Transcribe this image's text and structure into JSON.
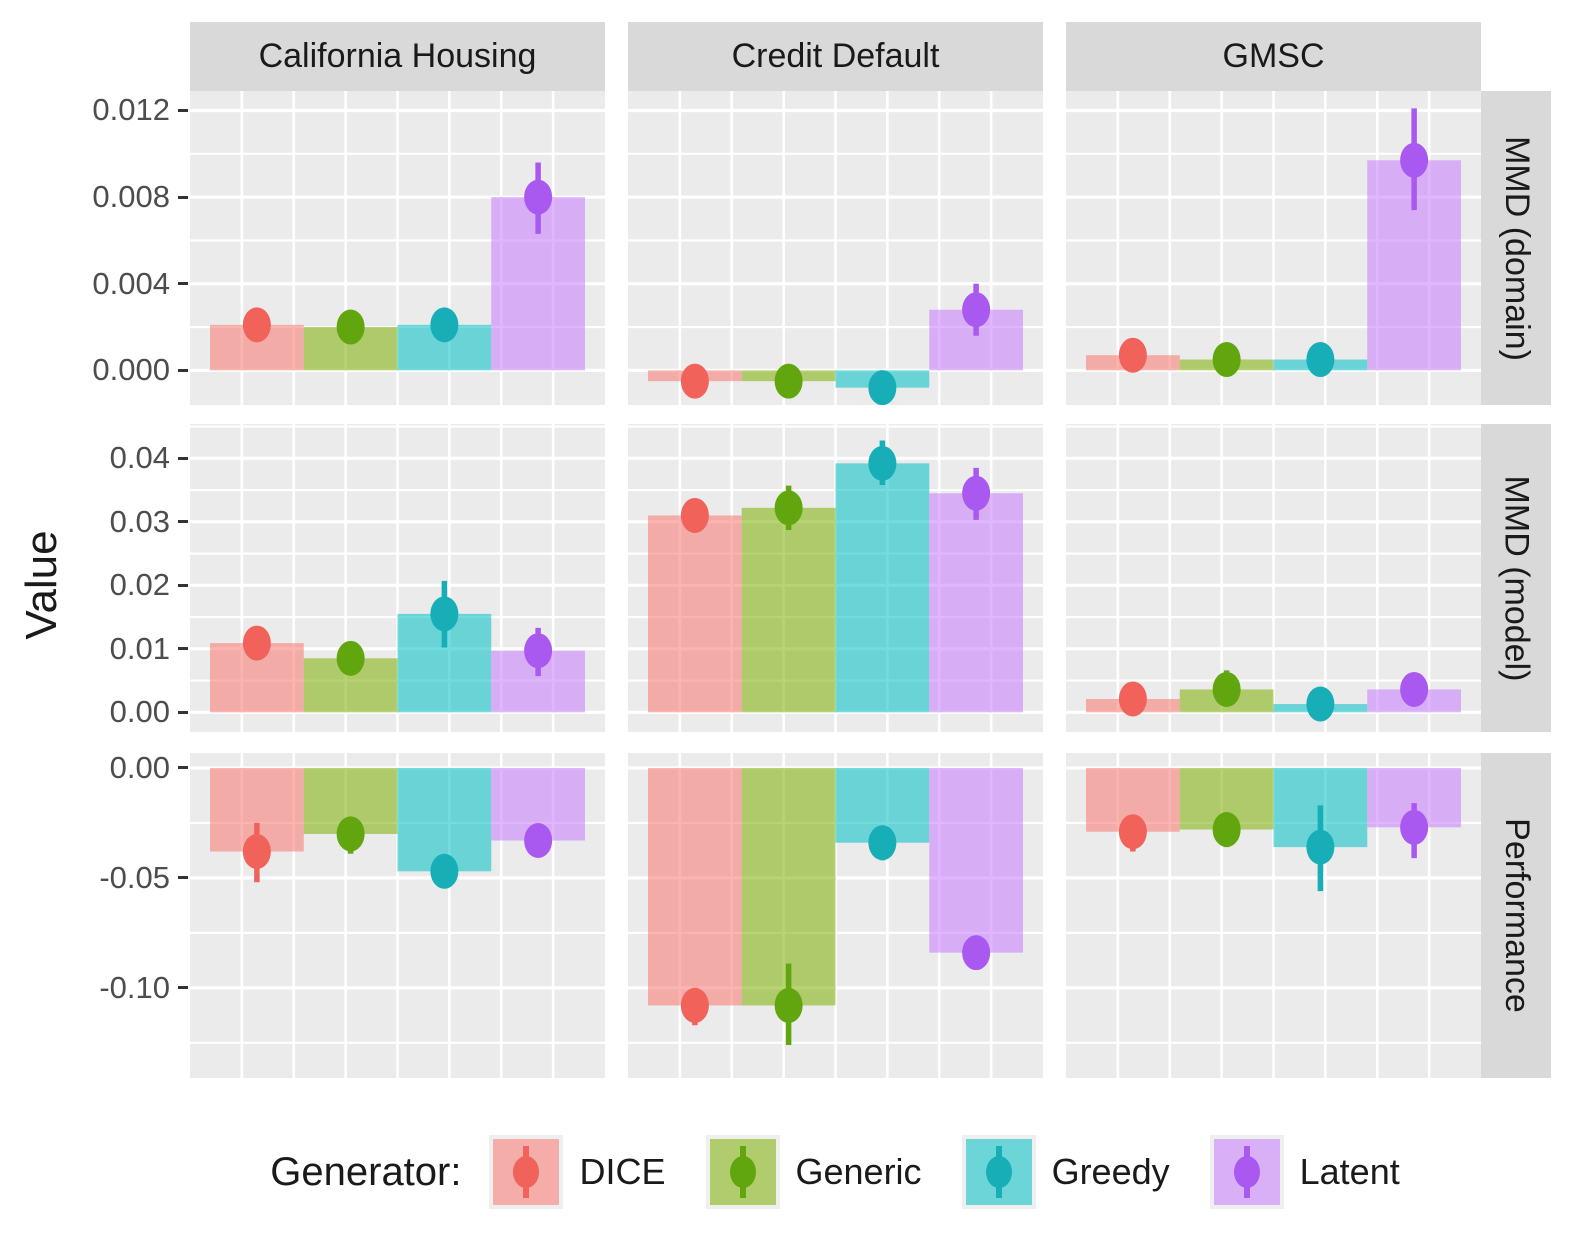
{
  "chart_data": {
    "type": "bar",
    "title": "",
    "ylabel": "Value",
    "legend_title": "Generator:",
    "facet_columns": [
      "California Housing",
      "Credit Default",
      "GMSC"
    ],
    "facet_rows": [
      "MMD (domain)",
      "MMD (model)",
      "Performance"
    ],
    "categories": [
      "DICE",
      "Generic",
      "Greedy",
      "Latent"
    ],
    "grid": "on",
    "legend_position": "bottom",
    "row_axes": [
      {
        "row": "MMD (domain)",
        "ticks": [
          0,
          0.004,
          0.008,
          0.012
        ],
        "tick_labels": [
          "0.000",
          "0.004",
          "0.008",
          "0.012"
        ],
        "minor_step": 0.002,
        "ylim": [
          -0.0016,
          0.0129
        ]
      },
      {
        "row": "MMD (model)",
        "ticks": [
          0,
          0.01,
          0.02,
          0.03,
          0.04
        ],
        "tick_labels": [
          "0.00",
          "0.01",
          "0.02",
          "0.03",
          "0.04"
        ],
        "minor_step": 0.005,
        "ylim": [
          -0.0031,
          0.0454
        ]
      },
      {
        "row": "Performance",
        "ticks": [
          0,
          -0.05,
          -0.1
        ],
        "tick_labels": [
          "0.00",
          "-0.05",
          "-0.10"
        ],
        "minor_step": 0.025,
        "ylim": [
          -0.141,
          0.0068
        ]
      }
    ],
    "panels": [
      {
        "row": "MMD (domain)",
        "column": "California Housing",
        "values": [
          0.0021,
          0.002,
          0.0021,
          0.008
        ],
        "err_low": [
          0.0018,
          0.0017,
          0.0018,
          0.0063
        ],
        "err_high": [
          0.0024,
          0.0023,
          0.0024,
          0.0096
        ]
      },
      {
        "row": "MMD (domain)",
        "column": "Credit Default",
        "values": [
          -0.0005,
          -0.0005,
          -0.0008,
          0.0028
        ],
        "err_low": [
          -0.0007,
          -0.0007,
          -0.0011,
          0.0016
        ],
        "err_high": [
          -0.0003,
          -0.0003,
          -0.0006,
          0.004
        ]
      },
      {
        "row": "MMD (domain)",
        "column": "GMSC",
        "values": [
          0.0007,
          0.0005,
          0.0005,
          0.0097
        ],
        "err_low": [
          0.0005,
          0.0003,
          0.0003,
          0.0074
        ],
        "err_high": [
          0.0009,
          0.0007,
          0.0007,
          0.0121
        ]
      },
      {
        "row": "MMD (model)",
        "column": "California Housing",
        "values": [
          0.0109,
          0.0085,
          0.0155,
          0.0097
        ],
        "err_low": [
          0.0095,
          0.007,
          0.0102,
          0.0057
        ],
        "err_high": [
          0.0123,
          0.0101,
          0.0207,
          0.0133
        ]
      },
      {
        "row": "MMD (model)",
        "column": "Credit Default",
        "values": [
          0.031,
          0.0322,
          0.0392,
          0.0345
        ],
        "err_low": [
          0.0284,
          0.0287,
          0.0358,
          0.0303
        ],
        "err_high": [
          0.0337,
          0.0357,
          0.0428,
          0.0385
        ]
      },
      {
        "row": "MMD (model)",
        "column": "GMSC",
        "values": [
          0.0021,
          0.0036,
          0.0013,
          0.0036
        ],
        "err_low": [
          0.0014,
          0.001,
          0.0008,
          0.0026
        ],
        "err_high": [
          0.0031,
          0.0066,
          0.002,
          0.005
        ]
      },
      {
        "row": "Performance",
        "column": "California Housing",
        "values": [
          -0.038,
          -0.03,
          -0.047,
          -0.033
        ],
        "err_low": [
          -0.052,
          -0.039,
          -0.054,
          -0.039
        ],
        "err_high": [
          -0.025,
          -0.024,
          -0.041,
          -0.028
        ]
      },
      {
        "row": "Performance",
        "column": "Credit Default",
        "values": [
          -0.108,
          -0.108,
          -0.034,
          -0.084
        ],
        "err_low": [
          -0.117,
          -0.126,
          -0.042,
          -0.09
        ],
        "err_high": [
          -0.1,
          -0.089,
          -0.027,
          -0.078
        ]
      },
      {
        "row": "Performance",
        "column": "GMSC",
        "values": [
          -0.029,
          -0.028,
          -0.036,
          -0.027
        ],
        "err_low": [
          -0.038,
          -0.036,
          -0.056,
          -0.041
        ],
        "err_high": [
          -0.022,
          -0.021,
          -0.017,
          -0.016
        ]
      }
    ]
  },
  "style": {
    "panel_bg": "#EBEBEB",
    "strip_bg": "#D9D9D9",
    "grid_color": "#FFFFFF",
    "tick_color": "#333333",
    "tick_label_color": "#4D4D4D",
    "text_color": "#1A1A1A",
    "legend_key_bg": "#EFEFEF",
    "bar_alpha": 0.55,
    "palette": [
      {
        "label": "DICE",
        "fill": "#F8766D",
        "point": "#F0625A"
      },
      {
        "label": "Generic",
        "fill": "#7CAE00",
        "point": "#61A60E"
      },
      {
        "label": "Greedy",
        "fill": "#00BFC4",
        "point": "#17AEB8"
      },
      {
        "label": "Latent",
        "fill": "#C77CFF",
        "point": "#A958F0"
      }
    ]
  }
}
